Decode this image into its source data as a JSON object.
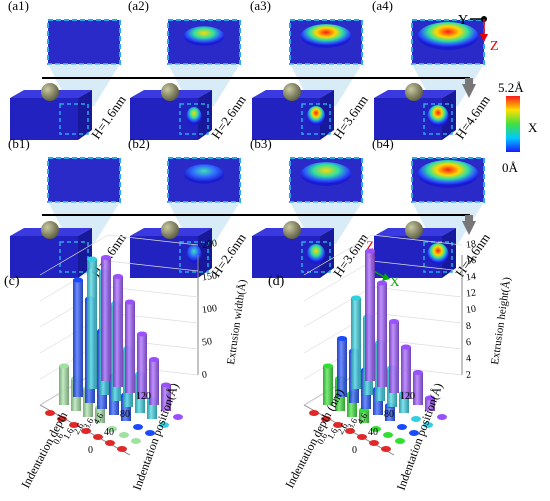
{
  "row_a": {
    "labels": [
      "(a1)",
      "(a2)",
      "(a3)",
      "(a4)"
    ],
    "depths": [
      "H=1.6nm",
      "H=2.6nm",
      "H=3.6nm",
      "H=4.6nm"
    ]
  },
  "row_b": {
    "labels": [
      "(b1)",
      "(b2)",
      "(b3)",
      "(b4)"
    ],
    "depths": [
      "H=1.6nm",
      "H=2.6nm",
      "H=3.6nm",
      "H=4.6nm"
    ]
  },
  "colorbar": {
    "max": "5.2Å",
    "min": "0Å",
    "quantity": "X"
  },
  "axes_top": {
    "y": "Y",
    "z": "Z"
  },
  "axes_bottom": {
    "z": "Z",
    "x": "X"
  },
  "chart_c": {
    "label": "(c)",
    "zlabel": "Extrusion width(Å)",
    "zticks": [
      "0",
      "50",
      "100",
      "150",
      "200"
    ],
    "xlabel": "Indentation position(Å)",
    "xticks": [
      "0",
      "40",
      "80",
      "120"
    ],
    "ylabel": "Indentation depth",
    "yticks": [
      "0.6",
      "1.6",
      "2.6",
      "3.6",
      "4.6"
    ]
  },
  "chart_d": {
    "label": "(d)",
    "zlabel": "Extrusion height(Å)",
    "zticks": [
      "2",
      "4",
      "6",
      "8",
      "10",
      "12",
      "14",
      "16",
      "18"
    ],
    "xlabel": "Indentation position(Å)",
    "xticks": [
      "0",
      "40",
      "80",
      "120"
    ],
    "ylabel": "Indentation depth (nm)",
    "yticks": [
      "0.6",
      "1.6",
      "2.6",
      "3.6",
      "4.6"
    ]
  }
}
